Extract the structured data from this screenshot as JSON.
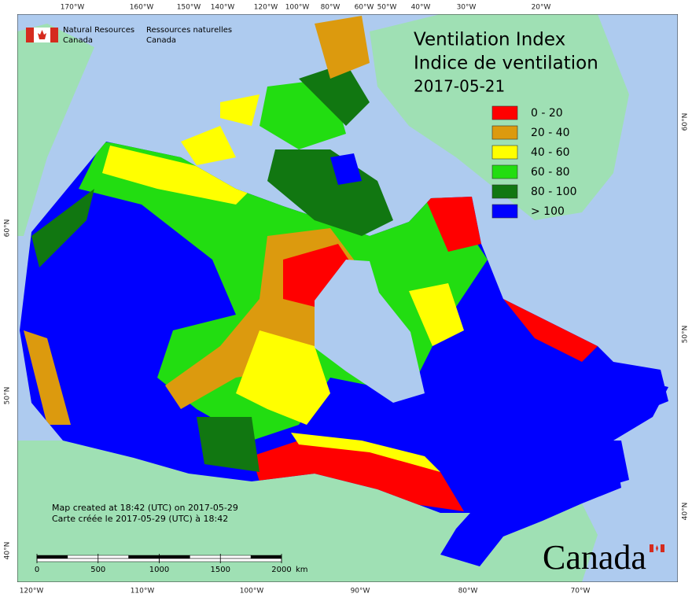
{
  "agency_en": [
    "Natural Resources",
    "Canada"
  ],
  "agency_fr": [
    "Ressources naturelles",
    "Canada"
  ],
  "title": [
    "Ventilation Index",
    "Indice de ventilation",
    "2017-05-21"
  ],
  "legend": [
    {
      "label": "0 - 20",
      "color": "#ff0000"
    },
    {
      "label": "20 - 40",
      "color": "#dc9a0e"
    },
    {
      "label": "40 - 60",
      "color": "#ffff00"
    },
    {
      "label": "60 - 80",
      "color": "#22dd11"
    },
    {
      "label": "80 - 100",
      "color": "#117711"
    },
    {
      "label": "> 100",
      "color": "#0000ff"
    }
  ],
  "graticule": {
    "top": [
      "170°W",
      "160°W",
      "150°W",
      "140°W",
      "120°W",
      "100°W",
      "80°W",
      "60°W",
      "50°W",
      "40°W",
      "30°W",
      "20°W"
    ],
    "bottom": [
      "120°W",
      "110°W",
      "100°W",
      "90°W",
      "80°W",
      "70°W"
    ],
    "left": [
      "60°N",
      "50°N",
      "40°N"
    ],
    "right": [
      "60°N",
      "50°N",
      "40°N"
    ]
  },
  "credits": [
    "Map created at 18:42 (UTC) on 2017-05-29",
    "Carte créée le 2017-05-29 (UTC) à 18:42"
  ],
  "scale_bar": {
    "ticks": [
      0,
      500,
      1000,
      1500,
      2000
    ],
    "unit": "km"
  },
  "wordmark": "Canada"
}
